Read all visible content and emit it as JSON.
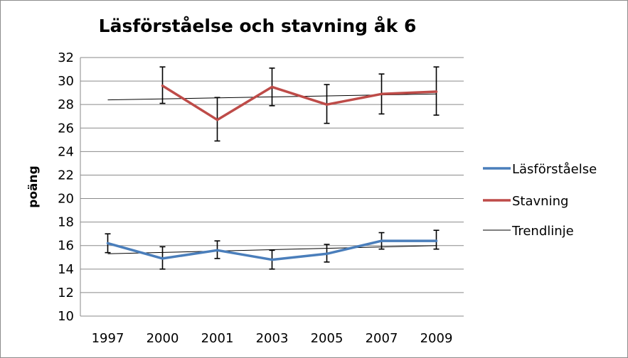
{
  "chart_data": {
    "type": "line",
    "title": "Läsförståelse och stavning åk 6",
    "xlabel": "",
    "ylabel": "poäng",
    "categories": [
      "1997",
      "2000",
      "2001",
      "2003",
      "2005",
      "2007",
      "2009"
    ],
    "ylim": [
      10,
      32
    ],
    "yticks": [
      "10",
      "12",
      "14",
      "16",
      "18",
      "20",
      "22",
      "24",
      "26",
      "28",
      "30",
      "32"
    ],
    "grid": true,
    "legend_position": "right",
    "series": [
      {
        "name": "Läsförståelse",
        "color": "#4a7ebb",
        "values": [
          16.2,
          14.9,
          15.6,
          14.8,
          15.3,
          16.4,
          16.4
        ],
        "error_low": [
          15.4,
          14.0,
          14.9,
          14.0,
          14.6,
          15.7,
          15.7
        ],
        "error_high": [
          17.0,
          15.9,
          16.4,
          15.6,
          16.1,
          17.1,
          17.3
        ]
      },
      {
        "name": "Stavning",
        "color": "#be4b48",
        "values": [
          null,
          29.6,
          26.7,
          29.5,
          28.0,
          28.9,
          29.1
        ],
        "error_low": [
          null,
          28.1,
          24.9,
          27.9,
          26.4,
          27.2,
          27.1
        ],
        "error_high": [
          null,
          31.2,
          28.6,
          31.1,
          29.7,
          30.6,
          31.2
        ]
      }
    ],
    "trendlines": [
      {
        "of": "Läsförståelse",
        "start": 15.3,
        "end": 16.0
      },
      {
        "of": "Stavning",
        "start": 28.4,
        "end": 28.9
      }
    ],
    "legend": [
      {
        "label": "Läsförståelse",
        "color": "#4a7ebb"
      },
      {
        "label": "Stavning",
        "color": "#be4b48"
      },
      {
        "label": "Trendlinje",
        "color": "#000000"
      }
    ]
  }
}
